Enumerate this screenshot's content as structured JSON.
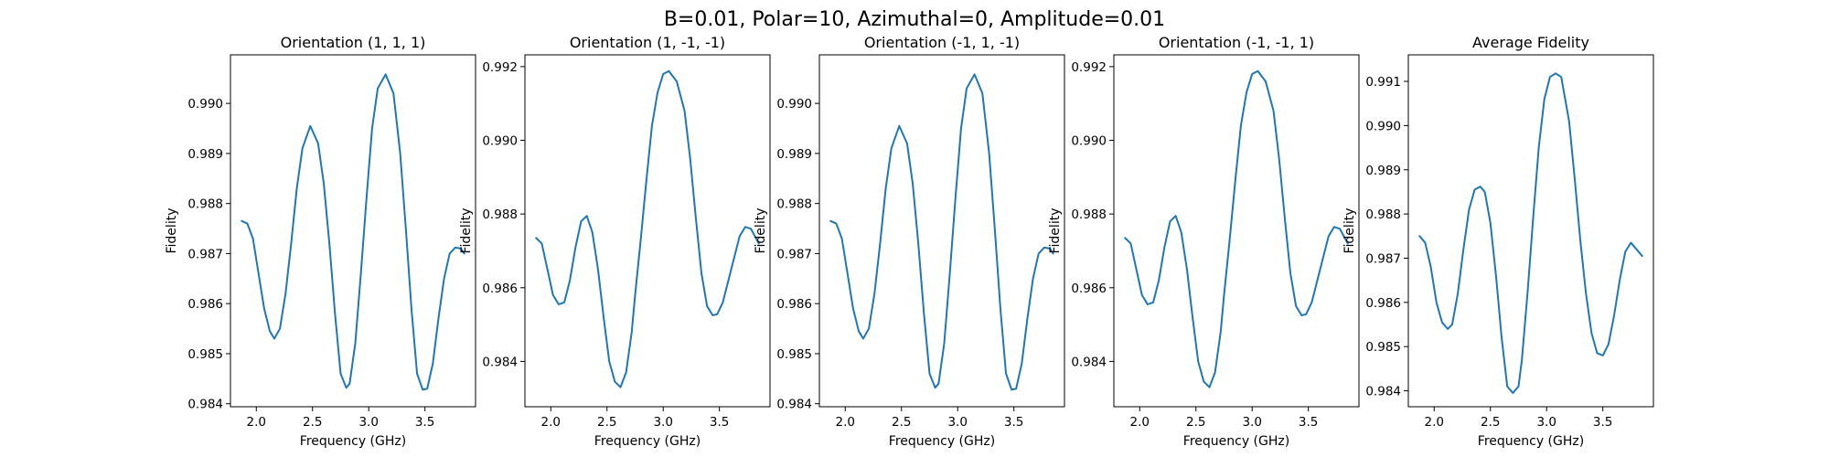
{
  "figure_title": "B=0.01, Polar=10, Azimuthal=0, Amplitude=0.01",
  "chart_data": [
    {
      "type": "line",
      "title": "Orientation (1, 1, 1)",
      "xlabel": "Frequency (GHz)",
      "ylabel": "Fidelity",
      "xlim": [
        1.77,
        3.95
      ],
      "ylim": [
        0.98394,
        0.99097
      ],
      "xticks": [
        "2.0",
        "2.5",
        "3.0",
        "3.5"
      ],
      "xtick_values": [
        2.0,
        2.5,
        3.0,
        3.5
      ],
      "yticks": [
        "0.984",
        "0.985",
        "0.986",
        "0.987",
        "0.988",
        "0.989",
        "0.990"
      ],
      "ytick_values": [
        0.984,
        0.985,
        0.986,
        0.987,
        0.988,
        0.989,
        0.99
      ],
      "grid": false,
      "color": "#1f77b4",
      "series": [
        {
          "x": [
            1.87,
            1.92,
            1.97,
            2.02,
            2.07,
            2.12,
            2.16,
            2.21,
            2.26,
            2.31,
            2.36,
            2.41,
            2.48,
            2.55,
            2.6,
            2.65,
            2.7,
            2.75,
            2.8,
            2.83,
            2.88,
            2.93,
            2.98,
            3.03,
            3.08,
            3.15,
            3.22,
            3.28,
            3.33,
            3.38,
            3.43,
            3.48,
            3.52,
            3.57,
            3.62,
            3.67,
            3.72,
            3.77,
            3.82,
            3.85
          ],
          "y": [
            0.98765,
            0.9876,
            0.9873,
            0.9866,
            0.9859,
            0.98545,
            0.9853,
            0.9855,
            0.9862,
            0.9872,
            0.9883,
            0.9891,
            0.98955,
            0.9892,
            0.9884,
            0.9872,
            0.9858,
            0.9846,
            0.98432,
            0.9844,
            0.9852,
            0.9866,
            0.9881,
            0.9895,
            0.9903,
            0.99058,
            0.9902,
            0.989,
            0.9875,
            0.9859,
            0.9846,
            0.98428,
            0.9843,
            0.9848,
            0.9857,
            0.9865,
            0.987,
            0.98712,
            0.9871,
            0.987
          ]
        }
      ]
    },
    {
      "type": "line",
      "title": "Orientation (1, -1, -1)",
      "xlabel": "Frequency (GHz)",
      "ylabel": "Fidelity",
      "xlim": [
        1.77,
        3.95
      ],
      "ylim": [
        0.98277,
        0.99232
      ],
      "xticks": [
        "2.0",
        "2.5",
        "3.0",
        "3.5"
      ],
      "xtick_values": [
        2.0,
        2.5,
        3.0,
        3.5
      ],
      "yticks": [
        "0.984",
        "0.986",
        "0.988",
        "0.990",
        "0.992"
      ],
      "ytick_values": [
        0.984,
        0.986,
        0.988,
        0.99,
        0.992
      ],
      "grid": false,
      "color": "#1f77b4",
      "series": [
        {
          "x": [
            1.87,
            1.92,
            1.97,
            2.02,
            2.07,
            2.12,
            2.17,
            2.22,
            2.27,
            2.32,
            2.37,
            2.42,
            2.47,
            2.52,
            2.57,
            2.62,
            2.67,
            2.72,
            2.75,
            2.8,
            2.85,
            2.9,
            2.95,
            3.0,
            3.05,
            3.12,
            3.19,
            3.24,
            3.29,
            3.34,
            3.39,
            3.44,
            3.48,
            3.53,
            3.58,
            3.63,
            3.68,
            3.73,
            3.78,
            3.85
          ],
          "y": [
            0.98735,
            0.9872,
            0.9865,
            0.9858,
            0.98555,
            0.9856,
            0.9862,
            0.9871,
            0.9878,
            0.98795,
            0.9875,
            0.9865,
            0.9852,
            0.984,
            0.98345,
            0.9833,
            0.9837,
            0.9848,
            0.9858,
            0.9873,
            0.9889,
            0.9904,
            0.9913,
            0.9918,
            0.99188,
            0.9916,
            0.9908,
            0.9895,
            0.9879,
            0.9864,
            0.9855,
            0.98525,
            0.98528,
            0.9856,
            0.9862,
            0.9868,
            0.9874,
            0.98765,
            0.9876,
            0.9872
          ]
        }
      ]
    },
    {
      "type": "line",
      "title": "Orientation (-1, 1, -1)",
      "xlabel": "Frequency (GHz)",
      "ylabel": "Fidelity",
      "xlim": [
        1.77,
        3.95
      ],
      "ylim": [
        0.98394,
        0.99097
      ],
      "xticks": [
        "2.0",
        "2.5",
        "3.0",
        "3.5"
      ],
      "xtick_values": [
        2.0,
        2.5,
        3.0,
        3.5
      ],
      "yticks": [
        "0.984",
        "0.985",
        "0.986",
        "0.987",
        "0.988",
        "0.989",
        "0.990"
      ],
      "ytick_values": [
        0.984,
        0.985,
        0.986,
        0.987,
        0.988,
        0.989,
        0.99
      ],
      "grid": false,
      "color": "#1f77b4",
      "series": [
        {
          "x": [
            1.87,
            1.92,
            1.97,
            2.02,
            2.07,
            2.12,
            2.16,
            2.21,
            2.26,
            2.31,
            2.36,
            2.41,
            2.48,
            2.55,
            2.6,
            2.65,
            2.7,
            2.75,
            2.8,
            2.83,
            2.88,
            2.93,
            2.98,
            3.03,
            3.08,
            3.15,
            3.22,
            3.28,
            3.33,
            3.38,
            3.43,
            3.48,
            3.52,
            3.57,
            3.62,
            3.67,
            3.72,
            3.77,
            3.82,
            3.85
          ],
          "y": [
            0.98765,
            0.9876,
            0.9873,
            0.9866,
            0.9859,
            0.98545,
            0.9853,
            0.9855,
            0.9862,
            0.9872,
            0.9883,
            0.9891,
            0.98955,
            0.9892,
            0.9884,
            0.9872,
            0.9858,
            0.9846,
            0.98432,
            0.9844,
            0.9852,
            0.9866,
            0.9881,
            0.9895,
            0.9903,
            0.99058,
            0.9902,
            0.989,
            0.9875,
            0.9859,
            0.9846,
            0.98428,
            0.9843,
            0.9848,
            0.9857,
            0.9865,
            0.987,
            0.98712,
            0.9871,
            0.987
          ]
        }
      ]
    },
    {
      "type": "line",
      "title": "Orientation (-1, -1, 1)",
      "xlabel": "Frequency (GHz)",
      "ylabel": "Fidelity",
      "xlim": [
        1.77,
        3.95
      ],
      "ylim": [
        0.98277,
        0.99232
      ],
      "xticks": [
        "2.0",
        "2.5",
        "3.0",
        "3.5"
      ],
      "xtick_values": [
        2.0,
        2.5,
        3.0,
        3.5
      ],
      "yticks": [
        "0.984",
        "0.986",
        "0.988",
        "0.990",
        "0.992"
      ],
      "ytick_values": [
        0.984,
        0.986,
        0.988,
        0.99,
        0.992
      ],
      "grid": false,
      "color": "#1f77b4",
      "series": [
        {
          "x": [
            1.87,
            1.92,
            1.97,
            2.02,
            2.07,
            2.12,
            2.17,
            2.22,
            2.27,
            2.32,
            2.37,
            2.42,
            2.47,
            2.52,
            2.57,
            2.62,
            2.67,
            2.72,
            2.75,
            2.8,
            2.85,
            2.9,
            2.95,
            3.0,
            3.05,
            3.12,
            3.19,
            3.24,
            3.29,
            3.34,
            3.39,
            3.44,
            3.48,
            3.53,
            3.58,
            3.63,
            3.68,
            3.73,
            3.78,
            3.85
          ],
          "y": [
            0.98735,
            0.9872,
            0.9865,
            0.9858,
            0.98555,
            0.9856,
            0.9862,
            0.9871,
            0.9878,
            0.98795,
            0.9875,
            0.9865,
            0.9852,
            0.984,
            0.98345,
            0.9833,
            0.9837,
            0.9848,
            0.9858,
            0.9873,
            0.9889,
            0.9904,
            0.9913,
            0.9918,
            0.99188,
            0.9916,
            0.9908,
            0.9895,
            0.9879,
            0.9864,
            0.9855,
            0.98525,
            0.98528,
            0.9856,
            0.9862,
            0.9868,
            0.9874,
            0.98765,
            0.9876,
            0.9872
          ]
        }
      ]
    },
    {
      "type": "line",
      "title": "Average Fidelity",
      "xlabel": "Frequency (GHz)",
      "ylabel": "Fidelity",
      "xlim": [
        1.77,
        3.95
      ],
      "ylim": [
        0.98364,
        0.9916
      ],
      "xticks": [
        "2.0",
        "2.5",
        "3.0",
        "3.5"
      ],
      "xtick_values": [
        2.0,
        2.5,
        3.0,
        3.5
      ],
      "yticks": [
        "0.984",
        "0.985",
        "0.986",
        "0.987",
        "0.988",
        "0.989",
        "0.990",
        "0.991"
      ],
      "ytick_values": [
        0.984,
        0.985,
        0.986,
        0.987,
        0.988,
        0.989,
        0.99,
        0.991
      ],
      "grid": false,
      "color": "#1f77b4",
      "series": [
        {
          "x": [
            1.87,
            1.92,
            1.97,
            2.02,
            2.07,
            2.12,
            2.16,
            2.21,
            2.26,
            2.31,
            2.36,
            2.41,
            2.45,
            2.5,
            2.55,
            2.6,
            2.65,
            2.7,
            2.75,
            2.78,
            2.83,
            2.88,
            2.93,
            2.98,
            3.03,
            3.08,
            3.13,
            3.2,
            3.25,
            3.3,
            3.35,
            3.4,
            3.45,
            3.5,
            3.55,
            3.6,
            3.65,
            3.7,
            3.75,
            3.8,
            3.85
          ],
          "y": [
            0.9875,
            0.98735,
            0.9868,
            0.986,
            0.98555,
            0.9854,
            0.9855,
            0.9862,
            0.9872,
            0.9881,
            0.98855,
            0.98862,
            0.9885,
            0.9878,
            0.9866,
            0.9852,
            0.9841,
            0.98395,
            0.9841,
            0.9847,
            0.9862,
            0.9879,
            0.9895,
            0.9906,
            0.9911,
            0.99118,
            0.9911,
            0.9901,
            0.9888,
            0.9874,
            0.9862,
            0.9853,
            0.98485,
            0.9848,
            0.98505,
            0.9857,
            0.9865,
            0.98715,
            0.98735,
            0.9872,
            0.98705
          ]
        }
      ]
    }
  ]
}
